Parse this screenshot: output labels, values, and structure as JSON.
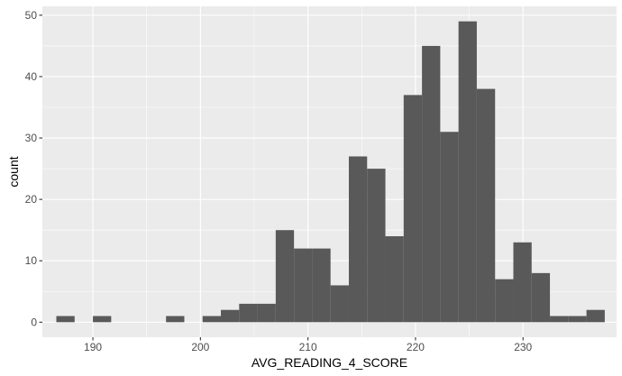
{
  "chart_data": {
    "type": "bar",
    "xlabel": "AVG_READING_4_SCORE",
    "ylabel": "count",
    "xlim": [
      185.3,
      238.7
    ],
    "ylim": [
      -2.45,
      51.45
    ],
    "x_ticks": [
      190,
      200,
      210,
      220,
      230
    ],
    "y_ticks": [
      0,
      10,
      20,
      30,
      40,
      50
    ],
    "x_ticks_labels": [
      "190",
      "200",
      "210",
      "220",
      "230"
    ],
    "y_ticks_labels": [
      "0",
      "10",
      "20",
      "30",
      "40",
      "50"
    ],
    "bin_width": 1.7,
    "bins_start": [
      186.6,
      188.3,
      190.0,
      191.7,
      193.4,
      195.1,
      196.8,
      198.5,
      200.2,
      201.9,
      203.6,
      205.3,
      207.0,
      208.7,
      210.4,
      212.1,
      213.8,
      215.5,
      217.2,
      218.9,
      220.6,
      222.3,
      224.0,
      225.7,
      227.4,
      229.1,
      230.8,
      232.5,
      234.2,
      235.9
    ],
    "counts": [
      1,
      0,
      1,
      0,
      0,
      0,
      1,
      0,
      1,
      2,
      3,
      3,
      15,
      12,
      12,
      6,
      27,
      25,
      14,
      37,
      45,
      31,
      49,
      38,
      7,
      13,
      8,
      1,
      1,
      2
    ],
    "bar_color": "#595959",
    "panel_color": "#ebebeb",
    "grid": true,
    "grid_color": "#ffffff"
  }
}
